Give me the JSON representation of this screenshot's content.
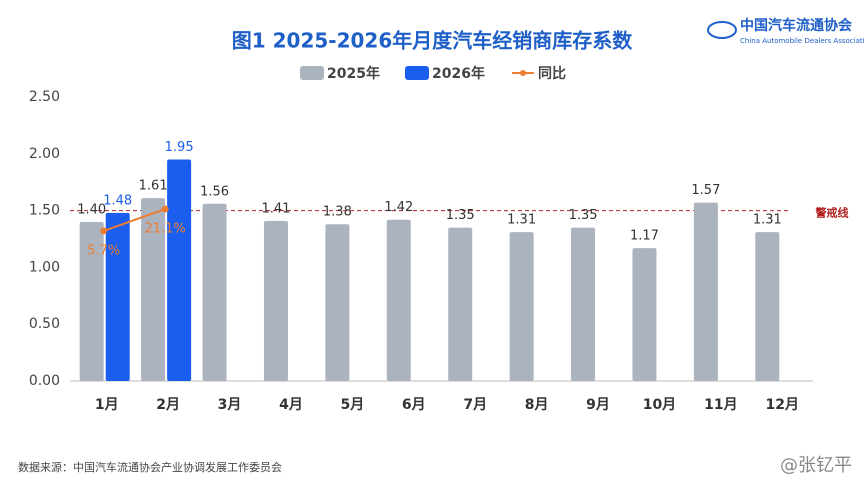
{
  "chart_data": {
    "type": "bar",
    "title": "图1  2025-2026年月度汽车经销商库存系数",
    "categories": [
      "1月",
      "2月",
      "3月",
      "4月",
      "5月",
      "6月",
      "7月",
      "8月",
      "9月",
      "10月",
      "11月",
      "12月"
    ],
    "series": [
      {
        "name": "2025年",
        "color": "#abb3bf",
        "values": [
          1.4,
          1.61,
          1.56,
          1.41,
          1.38,
          1.42,
          1.35,
          1.31,
          1.35,
          1.17,
          1.57,
          1.31
        ],
        "value_labels": [
          "1.40",
          "1.61",
          "1.56",
          "1.41",
          "1.38",
          "1.42",
          "1.35",
          "1.31",
          "1.35",
          "1.17",
          "1.57",
          "1.31"
        ]
      },
      {
        "name": "2026年",
        "color": "#1a5ef0",
        "values": [
          1.48,
          1.95,
          null,
          null,
          null,
          null,
          null,
          null,
          null,
          null,
          null,
          null
        ],
        "value_labels": [
          "1.48",
          "1.95",
          null,
          null,
          null,
          null,
          null,
          null,
          null,
          null,
          null,
          null
        ]
      },
      {
        "name": "同比",
        "type": "line",
        "axis": "y2",
        "color": "#ed7d31",
        "values": [
          5.7,
          21.1,
          null,
          null,
          null,
          null,
          null,
          null,
          null,
          null,
          null,
          null
        ],
        "value_labels": [
          "5.7%",
          "21.1%",
          null,
          null,
          null,
          null,
          null,
          null,
          null,
          null,
          null,
          null
        ]
      }
    ],
    "ylim": [
      0,
      2.5
    ],
    "yticks": [
      {
        "value": 0,
        "label": "0.00"
      },
      {
        "value": 0.5,
        "label": "0.50"
      },
      {
        "value": 1,
        "label": "1.00"
      },
      {
        "value": 1.5,
        "label": "1.50"
      },
      {
        "value": 2,
        "label": "2.00"
      },
      {
        "value": 2.5,
        "label": "2.50"
      }
    ],
    "y2lim": [
      -100,
      100
    ],
    "grid": false,
    "legend": "top",
    "annotations": [
      {
        "text": "警戒线",
        "y": 1.5,
        "color": "#b22222"
      }
    ]
  },
  "source": "数据来源：中国汽车流通协会产业协调发展工作委员会",
  "logo": {
    "name": "中国汽车流通协会",
    "subtitle": "China Automobile Dealers Association"
  },
  "watermark": "@张钇平"
}
